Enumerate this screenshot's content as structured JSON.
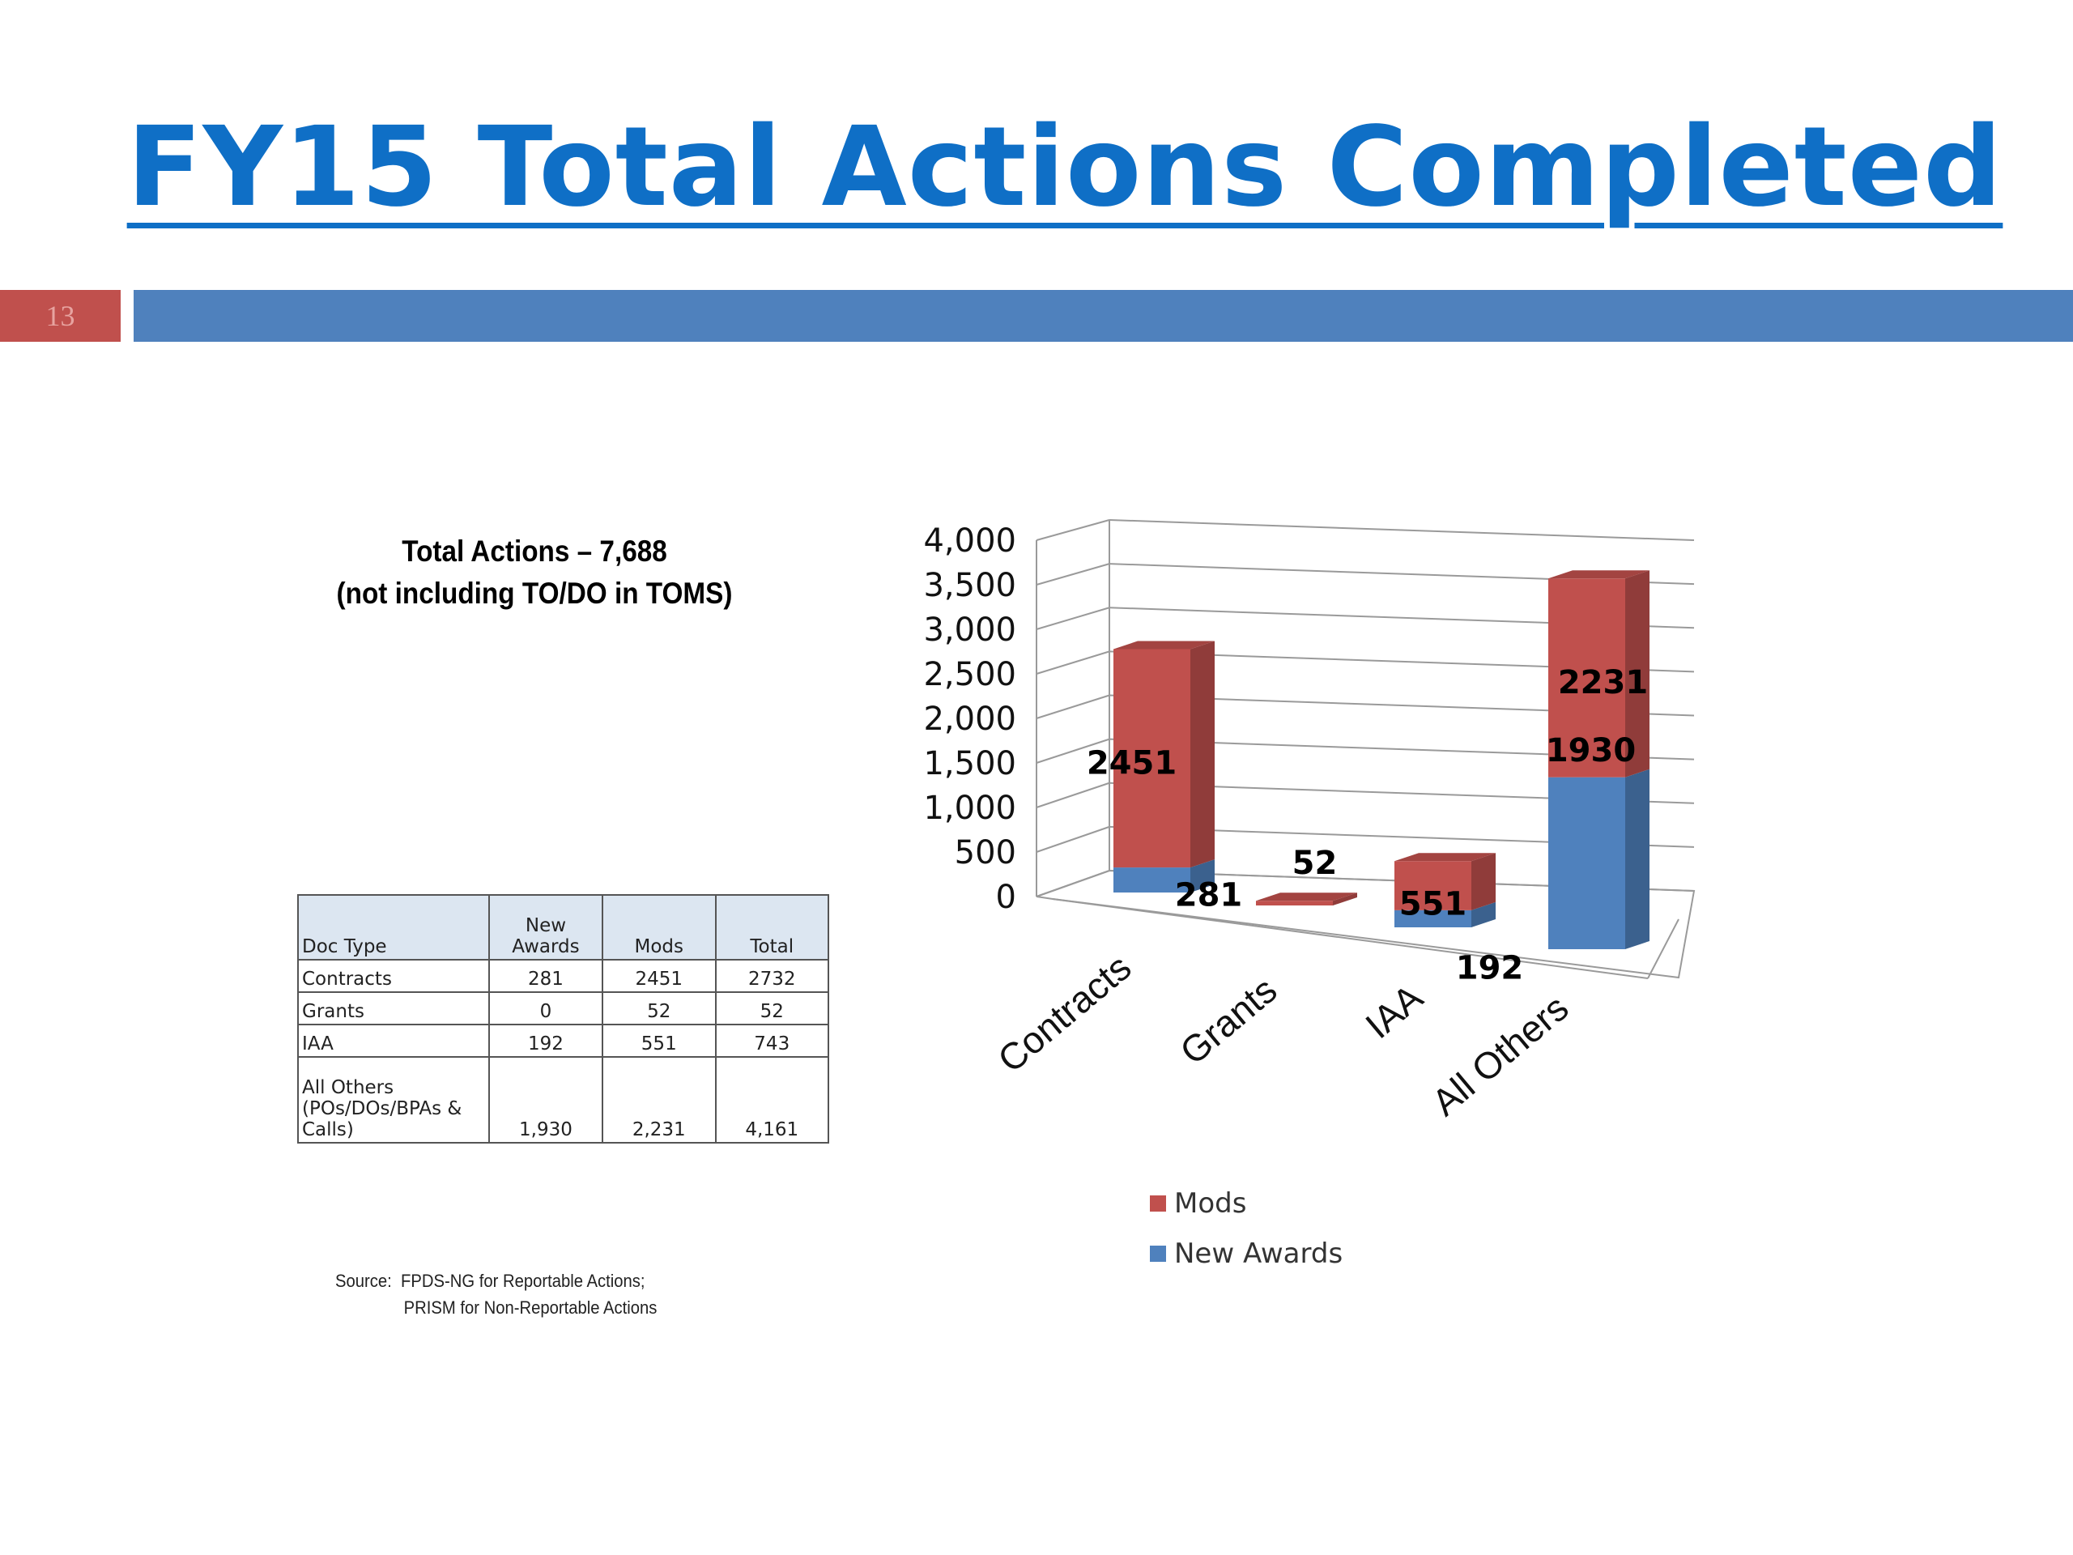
{
  "slide": {
    "title": "FY15 Total Actions Completed",
    "number": "13"
  },
  "summary": {
    "line1": "Total Actions – 7,688",
    "line2": "(not including TO/DO in TOMS)"
  },
  "table": {
    "headers": [
      "Doc Type",
      "New Awards",
      "Mods",
      "Total"
    ],
    "rows": [
      [
        "Contracts",
        "281",
        "2451",
        "2732"
      ],
      [
        "Grants",
        "0",
        "52",
        "52"
      ],
      [
        "IAA",
        "192",
        "551",
        "743"
      ],
      [
        "All Others (POs/DOs/BPAs & Calls)",
        "1,930",
        "2,231",
        "4,161"
      ]
    ]
  },
  "source": {
    "line1": "Source:  FPDS-NG for Reportable Actions;",
    "line2": "PRISM for Non-Reportable Actions"
  },
  "chart_data": {
    "type": "bar",
    "stacked": true,
    "three_d": true,
    "categories": [
      "Contracts",
      "Grants",
      "IAA",
      "All Others"
    ],
    "series": [
      {
        "name": "New Awards",
        "values": [
          281,
          0,
          192,
          1930
        ],
        "color": "#4f81bd"
      },
      {
        "name": "Mods",
        "values": [
          2451,
          52,
          551,
          2231
        ],
        "color": "#c0504d"
      }
    ],
    "data_labels": [
      {
        "category": "Contracts",
        "series": "Mods",
        "text": "2451"
      },
      {
        "category": "Contracts",
        "series": "New Awards",
        "text": "281"
      },
      {
        "category": "Grants",
        "series": "Mods",
        "text": "52"
      },
      {
        "category": "IAA",
        "series": "Mods",
        "text": "551"
      },
      {
        "category": "IAA",
        "series": "New Awards",
        "text": "192"
      },
      {
        "category": "All Others",
        "series": "Mods",
        "text": "2231"
      },
      {
        "category": "All Others",
        "series": "New Awards",
        "text": "1930"
      }
    ],
    "yticks": [
      "0",
      "500",
      "1,000",
      "1,500",
      "2,000",
      "2,500",
      "3,000",
      "3,500",
      "4,000"
    ],
    "ylim": [
      0,
      4000
    ],
    "grid": true,
    "legend": "bottom",
    "legend_entries": [
      "Mods",
      "New Awards"
    ],
    "title": "",
    "xlabel": "",
    "ylabel": ""
  }
}
